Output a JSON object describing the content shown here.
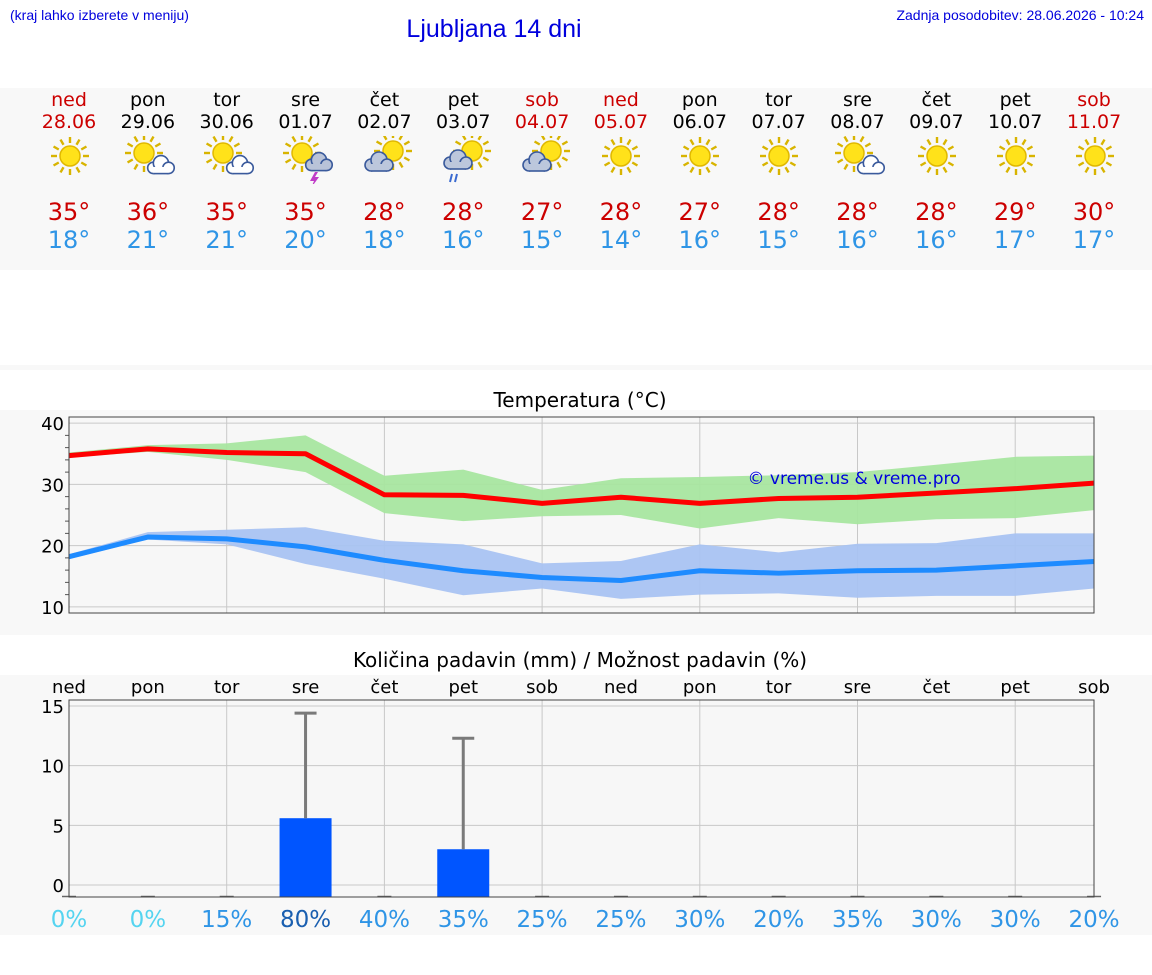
{
  "header": {
    "left_note": "(kraj lahko izberete v meniju)",
    "title": "Ljubljana 14 dni",
    "updated": "Zadnja posodobitev: 28.06.2026 - 10:24"
  },
  "colors": {
    "weekend": "#cc0000",
    "max_temp": "#cc0000",
    "min_temp": "#2f95e6",
    "max_band": "#a8e6a0",
    "min_band": "#a9c3f2",
    "max_line": "#ff0000",
    "min_line": "#1e8bff",
    "precip_bar": "#0055ff",
    "watermark": "#0000dd"
  },
  "forecast": [
    {
      "day": "ned",
      "date": "28.06",
      "icon": "sun-icon",
      "max": "35°",
      "min": "18°",
      "weekend": true
    },
    {
      "day": "pon",
      "date": "29.06",
      "icon": "sun-cloud-icon",
      "max": "36°",
      "min": "21°",
      "weekend": false
    },
    {
      "day": "tor",
      "date": "30.06",
      "icon": "sun-cloud-icon",
      "max": "35°",
      "min": "21°",
      "weekend": false
    },
    {
      "day": "sre",
      "date": "01.07",
      "icon": "sun-thunder-icon",
      "max": "35°",
      "min": "20°",
      "weekend": false
    },
    {
      "day": "čet",
      "date": "02.07",
      "icon": "cloud-sun-icon",
      "max": "28°",
      "min": "18°",
      "weekend": false
    },
    {
      "day": "pet",
      "date": "03.07",
      "icon": "cloud-rain-icon",
      "max": "28°",
      "min": "16°",
      "weekend": false
    },
    {
      "day": "sob",
      "date": "04.07",
      "icon": "cloud-sun-icon",
      "max": "27°",
      "min": "15°",
      "weekend": true
    },
    {
      "day": "ned",
      "date": "05.07",
      "icon": "sun-icon",
      "max": "28°",
      "min": "14°",
      "weekend": true
    },
    {
      "day": "pon",
      "date": "06.07",
      "icon": "sun-icon",
      "max": "27°",
      "min": "16°",
      "weekend": false
    },
    {
      "day": "tor",
      "date": "07.07",
      "icon": "sun-icon",
      "max": "28°",
      "min": "15°",
      "weekend": false
    },
    {
      "day": "sre",
      "date": "08.07",
      "icon": "sun-cloud-icon",
      "max": "28°",
      "min": "16°",
      "weekend": false
    },
    {
      "day": "čet",
      "date": "09.07",
      "icon": "sun-icon",
      "max": "28°",
      "min": "16°",
      "weekend": false
    },
    {
      "day": "pet",
      "date": "10.07",
      "icon": "sun-icon",
      "max": "29°",
      "min": "17°",
      "weekend": false
    },
    {
      "day": "sob",
      "date": "11.07",
      "icon": "sun-icon",
      "max": "30°",
      "min": "17°",
      "weekend": true
    }
  ],
  "chart_data": [
    {
      "type": "line",
      "title": "Temperatura (°C)",
      "watermark": "© vreme.us & vreme.pro",
      "ylim": [
        9,
        41
      ],
      "yticks": [
        10,
        20,
        30,
        40
      ],
      "grid": true,
      "x": [
        "28.06",
        "29.06",
        "30.06",
        "01.07",
        "02.07",
        "03.07",
        "04.07",
        "05.07",
        "06.07",
        "07.07",
        "08.07",
        "09.07",
        "10.07",
        "11.07"
      ],
      "series": [
        {
          "key": "max",
          "values": [
            34.7,
            35.8,
            35.2,
            35.0,
            28.3,
            28.2,
            26.9,
            27.9,
            26.9,
            27.7,
            27.9,
            28.6,
            29.3,
            30.2
          ],
          "band_low": [
            34.4,
            35.3,
            34.0,
            32.0,
            25.3,
            24.0,
            24.8,
            25.0,
            22.8,
            24.5,
            23.5,
            24.3,
            24.5,
            25.8
          ],
          "band_high": [
            35.2,
            36.4,
            36.7,
            38.0,
            31.4,
            32.4,
            29.1,
            31.0,
            31.2,
            31.5,
            32.0,
            33.2,
            34.5,
            34.7
          ]
        },
        {
          "key": "min",
          "values": [
            18.2,
            21.4,
            21.1,
            19.8,
            17.6,
            15.9,
            14.8,
            14.3,
            15.9,
            15.5,
            15.9,
            16.0,
            16.7,
            17.4
          ],
          "band_low": [
            17.8,
            21.0,
            20.2,
            17.0,
            14.6,
            11.9,
            13.0,
            11.3,
            12.0,
            12.2,
            11.5,
            11.8,
            11.8,
            13.0
          ],
          "band_high": [
            18.6,
            22.2,
            22.6,
            23.0,
            20.8,
            20.2,
            17.1,
            17.5,
            20.2,
            18.9,
            20.3,
            20.4,
            22.0,
            22.0
          ]
        }
      ]
    },
    {
      "type": "bar",
      "title": "Količina padavin (mm) / Možnost padavin (%)",
      "ylim": [
        -1,
        15.5
      ],
      "yticks": [
        0,
        5,
        10,
        15
      ],
      "grid": true,
      "categories": [
        "ned",
        "pon",
        "tor",
        "sre",
        "čet",
        "pet",
        "sob",
        "ned",
        "pon",
        "tor",
        "sre",
        "čet",
        "pet",
        "sob"
      ],
      "values": [
        0,
        0,
        0,
        5.6,
        0,
        3.0,
        0,
        0,
        0,
        0,
        0,
        0,
        0,
        0
      ],
      "error_high": [
        0,
        0,
        0,
        14.4,
        0,
        12.3,
        0,
        0,
        0,
        0,
        0,
        0,
        0,
        0
      ],
      "probability": [
        "0%",
        "0%",
        "15%",
        "80%",
        "40%",
        "35%",
        "25%",
        "25%",
        "30%",
        "20%",
        "35%",
        "30%",
        "30%",
        "20%"
      ],
      "probability_colors": [
        "#55d4f0",
        "#55d4f0",
        "#2f95e6",
        "#1a5fb0",
        "#2f95e6",
        "#2f95e6",
        "#2f95e6",
        "#2f95e6",
        "#2f95e6",
        "#2f95e6",
        "#2f95e6",
        "#2f95e6",
        "#2f95e6",
        "#2f95e6"
      ]
    }
  ]
}
